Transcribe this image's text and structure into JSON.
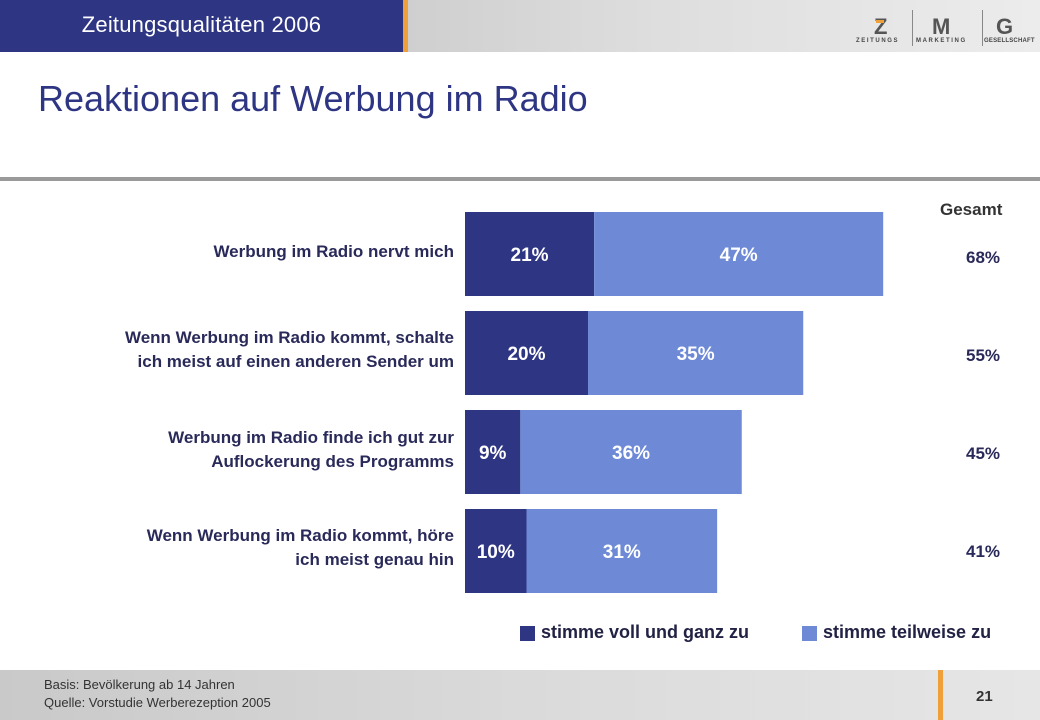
{
  "header": {
    "title": "Zeitungsqualitäten 2006"
  },
  "logo": {
    "letters": [
      "Z",
      "M",
      "G"
    ],
    "subs": [
      "ZEITUNGS",
      "MARKETING",
      "GESELLSCHAFT"
    ]
  },
  "page": {
    "title": "Reaktionen auf Werbung im Radio",
    "number": "21"
  },
  "footer": {
    "basis": "Basis: Bevölkerung ab 14 Jahren",
    "quelle": "Quelle: Vorstudie Werberezeption 2005"
  },
  "totals_header": "Gesamt",
  "colors": {
    "dark": "#2e3583",
    "light": "#6e8ad6",
    "accent": "#f0a038"
  },
  "chart_data": {
    "type": "bar",
    "orientation": "horizontal",
    "stacked": true,
    "categories": [
      [
        "Werbung im Radio nervt mich"
      ],
      [
        "Wenn Werbung im Radio kommt, schalte",
        "ich meist auf einen anderen Sender um"
      ],
      [
        "Werbung im Radio finde ich gut zur",
        "Auflockerung des Programms"
      ],
      [
        "Wenn Werbung im Radio kommt, höre",
        "ich meist genau hin"
      ]
    ],
    "series": [
      {
        "name": "stimme voll und ganz zu",
        "values": [
          21,
          20,
          9,
          10
        ]
      },
      {
        "name": "stimme teilweise zu",
        "values": [
          47,
          35,
          36,
          31
        ]
      }
    ],
    "totals": [
      68,
      55,
      45,
      41
    ],
    "unit": "%",
    "legend_position": "bottom",
    "grid": false
  }
}
